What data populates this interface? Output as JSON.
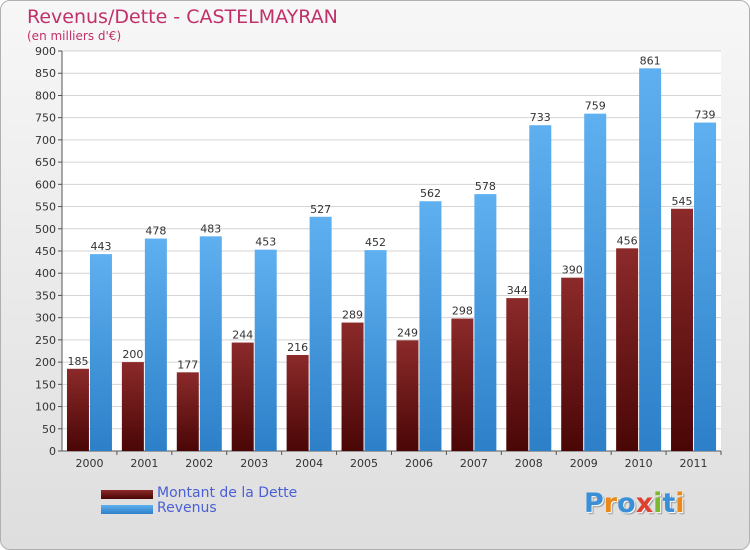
{
  "header": {
    "title": "Revenus/Dette - CASTELMAYRAN",
    "subtitle": "(en milliers d'€)"
  },
  "logo": {
    "text": "Proxiti",
    "letters": [
      {
        "ch": "P",
        "color": "#3b8fd6"
      },
      {
        "ch": "r",
        "color": "#e8891a"
      },
      {
        "ch": "o",
        "color": "#3b8fd6"
      },
      {
        "ch": "x",
        "color": "#e0402e"
      },
      {
        "ch": "i",
        "color": "#7cb82f"
      },
      {
        "ch": "t",
        "color": "#3b8fd6"
      },
      {
        "ch": "i",
        "color": "#e8891a"
      }
    ]
  },
  "chart_data": {
    "type": "bar",
    "title": "Revenus/Dette - CASTELMAYRAN",
    "subtitle": "(en milliers d'€)",
    "categories": [
      "2000",
      "2001",
      "2002",
      "2003",
      "2004",
      "2005",
      "2006",
      "2007",
      "2008",
      "2009",
      "2010",
      "2011"
    ],
    "series": [
      {
        "name": "Montant de la Dette",
        "color": "#7a1616",
        "values": [
          185,
          200,
          177,
          244,
          216,
          289,
          249,
          298,
          344,
          390,
          456,
          545
        ]
      },
      {
        "name": "Revenus",
        "color": "#4fa3e8",
        "values": [
          443,
          478,
          483,
          453,
          527,
          452,
          562,
          578,
          733,
          759,
          861,
          739
        ]
      }
    ],
    "ylim": [
      0,
      900
    ],
    "yticks": [
      0,
      50,
      100,
      150,
      200,
      250,
      300,
      350,
      400,
      450,
      500,
      550,
      600,
      650,
      700,
      750,
      800,
      850,
      900
    ],
    "grid": true,
    "legend": "bottom-left"
  }
}
